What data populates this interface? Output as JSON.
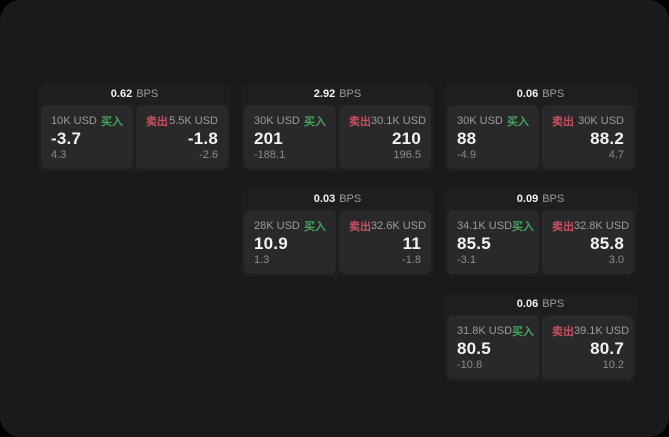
{
  "labels": {
    "buy": "买入",
    "sell": "卖出",
    "bps_unit": "BPS"
  },
  "colors": {
    "buy_color": "#46a25c",
    "sell_color": "#c8505e",
    "page_bg": "#1a1a1b",
    "card_bg": "#1e1e1f",
    "panel_bg": "#29292b"
  },
  "cards": [
    {
      "bps": "0.62",
      "buy": {
        "amount": "10K USD",
        "price": "-3.7",
        "change": "4.3"
      },
      "sell": {
        "amount": "5.5K USD",
        "price": "-1.8",
        "change": "-2.6"
      }
    },
    {
      "bps": "2.92",
      "buy": {
        "amount": "30K USD",
        "price": "201",
        "change": "-188.1"
      },
      "sell": {
        "amount": "30.1K USD",
        "price": "210",
        "change": "196.5"
      }
    },
    {
      "bps": "0.06",
      "buy": {
        "amount": "30K USD",
        "price": "88",
        "change": "-4.9"
      },
      "sell": {
        "amount": "30K USD",
        "price": "88.2",
        "change": "4.7"
      }
    },
    {
      "bps": "0.03",
      "buy": {
        "amount": "28K USD",
        "price": "10.9",
        "change": "1.3"
      },
      "sell": {
        "amount": "32.6K USD",
        "price": "11",
        "change": "-1.8"
      }
    },
    {
      "bps": "0.09",
      "buy": {
        "amount": "34.1K USD",
        "price": "85.5",
        "change": "-3.1"
      },
      "sell": {
        "amount": "32.8K USD",
        "price": "85.8",
        "change": "3.0"
      }
    },
    {
      "bps": "0.06",
      "buy": {
        "amount": "31.8K USD",
        "price": "80.5",
        "change": "-10.8"
      },
      "sell": {
        "amount": "39.1K USD",
        "price": "80.7",
        "change": "10.2"
      }
    }
  ]
}
